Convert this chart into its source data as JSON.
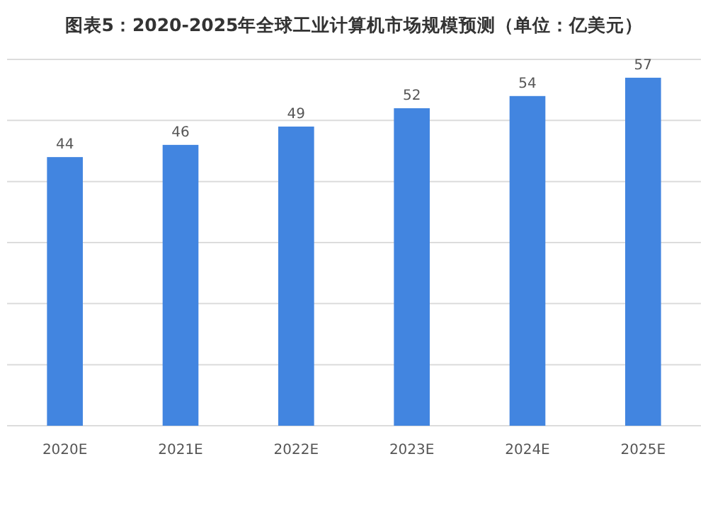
{
  "chart_data": {
    "type": "bar",
    "title": "图表5：2020-2025年全球工业计算机市场规模预测（单位：亿美元）",
    "categories": [
      "2020E",
      "2021E",
      "2022E",
      "2023E",
      "2024E",
      "2025E"
    ],
    "values": [
      44,
      46,
      49,
      52,
      54,
      57
    ],
    "color": "#4285e0",
    "ylim": [
      0,
      60
    ],
    "yticks": [
      {
        "value": 0,
        "label": null
      },
      {
        "value": 10,
        "label": null
      },
      {
        "value": 20,
        "label": null
      },
      {
        "value": 30,
        "label": null
      },
      {
        "value": 40,
        "label": null
      },
      {
        "value": 50,
        "label": null
      },
      {
        "value": 60,
        "label": null
      }
    ],
    "tick_labels": "x",
    "grid": "y",
    "data_labels": true
  }
}
